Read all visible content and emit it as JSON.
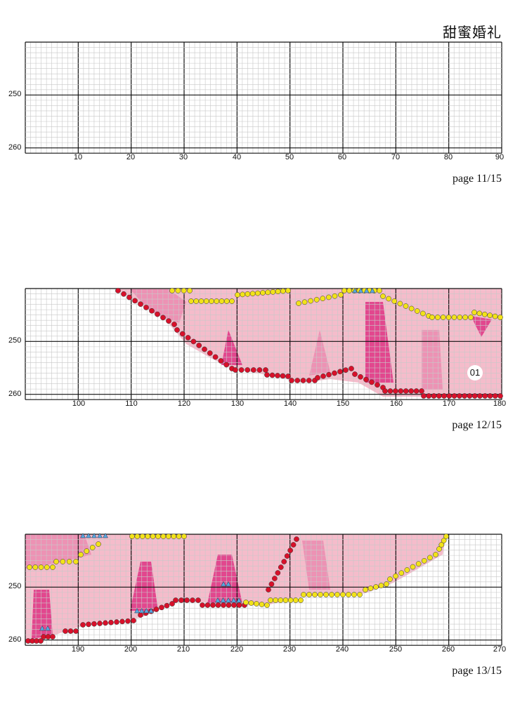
{
  "header": {
    "title": "甜蜜婚礼"
  },
  "panels": [
    {
      "page_label": "page 11/15",
      "row_labels": [
        "250",
        "260"
      ],
      "col_labels": [
        "10",
        "20",
        "30",
        "40",
        "50",
        "60",
        "70",
        "80",
        "90"
      ]
    },
    {
      "page_label": "page 12/15",
      "row_labels": [
        "250",
        "260"
      ],
      "col_labels": [
        "100",
        "110",
        "120",
        "130",
        "140",
        "150",
        "160",
        "170",
        "180"
      ],
      "badge": "01"
    },
    {
      "page_label": "page 13/15",
      "row_labels": [
        "250",
        "260"
      ],
      "col_labels": [
        "190",
        "200",
        "210",
        "220",
        "230",
        "240",
        "250",
        "260",
        "270"
      ]
    }
  ],
  "colors": {
    "grid_minor": "#c8c8c8",
    "grid_major": "#111111",
    "light_pink": "#f4b8c8",
    "mid_pink": "#ec8fb2",
    "hot_pink": "#e0408a",
    "dots_red": "#d8102a",
    "dots_yellow": "#f2e21a",
    "triangles_blue": "#5aa7e0"
  }
}
